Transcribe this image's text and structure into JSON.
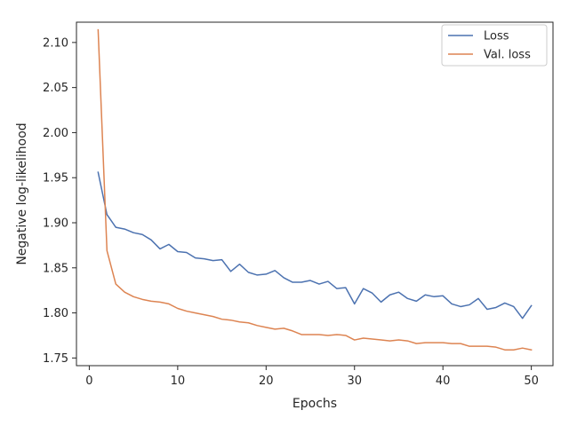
{
  "chart_data": {
    "type": "line",
    "title": "",
    "xlabel": "Epochs",
    "ylabel": "Negative log-likelihood",
    "xlim": [
      -1.45,
      52.45
    ],
    "ylim": [
      1.7415,
      2.1225
    ],
    "xticks": [
      0,
      10,
      20,
      30,
      40,
      50
    ],
    "xtick_labels": [
      "0",
      "10",
      "20",
      "30",
      "40",
      "50"
    ],
    "yticks": [
      1.75,
      1.8,
      1.85,
      1.9,
      1.95,
      2.0,
      2.05,
      2.1
    ],
    "ytick_labels": [
      "1.75",
      "1.80",
      "1.85",
      "1.90",
      "1.95",
      "2.00",
      "2.05",
      "2.10"
    ],
    "grid": false,
    "legend_position": "top-right",
    "x": [
      1,
      2,
      3,
      4,
      5,
      6,
      7,
      8,
      9,
      10,
      11,
      12,
      13,
      14,
      15,
      16,
      17,
      18,
      19,
      20,
      21,
      22,
      23,
      24,
      25,
      26,
      27,
      28,
      29,
      30,
      31,
      32,
      33,
      34,
      35,
      36,
      37,
      38,
      39,
      40,
      41,
      42,
      43,
      44,
      45,
      46,
      47,
      48,
      49,
      50
    ],
    "series": [
      {
        "name": "Loss",
        "color": "#4c72b0",
        "values": [
          1.956,
          1.909,
          1.895,
          1.893,
          1.889,
          1.887,
          1.881,
          1.871,
          1.876,
          1.868,
          1.867,
          1.861,
          1.86,
          1.858,
          1.859,
          1.846,
          1.854,
          1.845,
          1.842,
          1.843,
          1.847,
          1.839,
          1.834,
          1.834,
          1.836,
          1.832,
          1.835,
          1.827,
          1.828,
          1.81,
          1.827,
          1.822,
          1.812,
          1.82,
          1.823,
          1.816,
          1.813,
          1.82,
          1.818,
          1.819,
          1.81,
          1.807,
          1.809,
          1.816,
          1.804,
          1.806,
          1.811,
          1.807,
          1.794,
          1.808
        ]
      },
      {
        "name": "Val. loss",
        "color": "#dd8452",
        "values": [
          2.114,
          1.869,
          1.832,
          1.823,
          1.818,
          1.815,
          1.813,
          1.812,
          1.81,
          1.805,
          1.802,
          1.8,
          1.798,
          1.796,
          1.793,
          1.792,
          1.79,
          1.789,
          1.786,
          1.784,
          1.782,
          1.783,
          1.78,
          1.776,
          1.776,
          1.776,
          1.775,
          1.776,
          1.775,
          1.77,
          1.772,
          1.771,
          1.77,
          1.769,
          1.77,
          1.769,
          1.766,
          1.767,
          1.767,
          1.767,
          1.766,
          1.766,
          1.763,
          1.763,
          1.763,
          1.762,
          1.759,
          1.759,
          1.761,
          1.759
        ]
      }
    ]
  }
}
